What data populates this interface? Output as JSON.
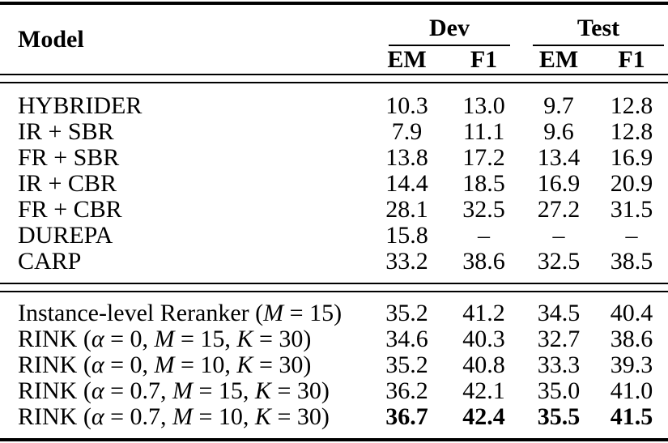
{
  "colors": {
    "text": "#000000",
    "background": "#ffffff",
    "rule": "#000000"
  },
  "table": {
    "header": {
      "model": "Model",
      "groups": [
        {
          "label": "Dev",
          "subcols": [
            "EM",
            "F1"
          ]
        },
        {
          "label": "Test",
          "subcols": [
            "EM",
            "F1"
          ]
        }
      ]
    },
    "sections": [
      {
        "rows": [
          {
            "label": [
              {
                "t": "HYBRIDER"
              }
            ],
            "values": [
              "10.3",
              "13.0",
              "9.7",
              "12.8"
            ]
          },
          {
            "label": [
              {
                "t": "IR + SBR"
              }
            ],
            "values": [
              "7.9",
              "11.1",
              "9.6",
              "12.8"
            ]
          },
          {
            "label": [
              {
                "t": "FR + SBR"
              }
            ],
            "values": [
              "13.8",
              "17.2",
              "13.4",
              "16.9"
            ]
          },
          {
            "label": [
              {
                "t": "IR + CBR"
              }
            ],
            "values": [
              "14.4",
              "18.5",
              "16.9",
              "20.9"
            ]
          },
          {
            "label": [
              {
                "t": "FR + CBR"
              }
            ],
            "values": [
              "28.1",
              "32.5",
              "27.2",
              "31.5"
            ]
          },
          {
            "label": [
              {
                "t": "DUREPA"
              }
            ],
            "values": [
              "15.8",
              "–",
              "–",
              "–"
            ]
          },
          {
            "label": [
              {
                "t": "CARP"
              }
            ],
            "values": [
              "33.2",
              "38.6",
              "32.5",
              "38.5"
            ]
          }
        ]
      },
      {
        "rows": [
          {
            "label": [
              {
                "t": "Instance-level Reranker ("
              },
              {
                "t": "M",
                "i": true
              },
              {
                "t": " = 15)"
              }
            ],
            "values": [
              "35.2",
              "41.2",
              "34.5",
              "40.4"
            ]
          },
          {
            "label": [
              {
                "t": "RINK ("
              },
              {
                "t": "α",
                "i": true
              },
              {
                "t": " = 0, "
              },
              {
                "t": "M",
                "i": true
              },
              {
                "t": " = 15, "
              },
              {
                "t": "K",
                "i": true
              },
              {
                "t": " = 30)"
              }
            ],
            "values": [
              "34.6",
              "40.3",
              "32.7",
              "38.6"
            ]
          },
          {
            "label": [
              {
                "t": "RINK ("
              },
              {
                "t": "α",
                "i": true
              },
              {
                "t": " = 0, "
              },
              {
                "t": "M",
                "i": true
              },
              {
                "t": " = 10, "
              },
              {
                "t": "K",
                "i": true
              },
              {
                "t": " = 30)"
              }
            ],
            "values": [
              "35.2",
              "40.8",
              "33.3",
              "39.3"
            ]
          },
          {
            "label": [
              {
                "t": "RINK ("
              },
              {
                "t": "α",
                "i": true
              },
              {
                "t": " = 0.7, "
              },
              {
                "t": "M",
                "i": true
              },
              {
                "t": " = 15, "
              },
              {
                "t": "K",
                "i": true
              },
              {
                "t": " = 30)"
              }
            ],
            "values": [
              "36.2",
              "42.1",
              "35.0",
              "41.0"
            ]
          },
          {
            "label": [
              {
                "t": "RINK ("
              },
              {
                "t": "α",
                "i": true
              },
              {
                "t": " = 0.7, "
              },
              {
                "t": "M",
                "i": true
              },
              {
                "t": " = 10, "
              },
              {
                "t": "K",
                "i": true
              },
              {
                "t": " = 30)"
              }
            ],
            "values": [
              "36.7",
              "42.4",
              "35.5",
              "41.5"
            ],
            "bold_values": true
          }
        ]
      }
    ]
  }
}
